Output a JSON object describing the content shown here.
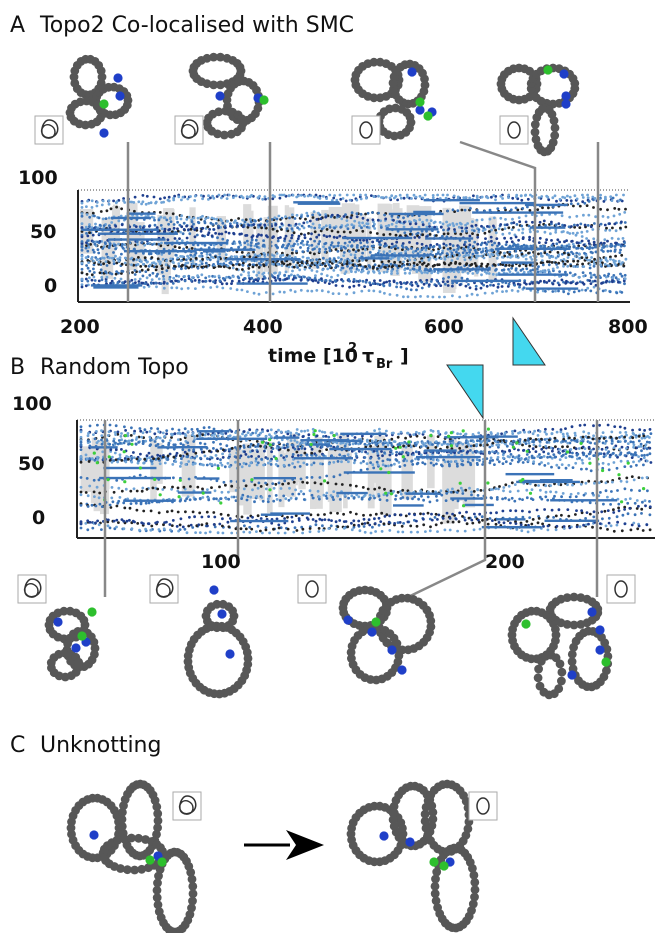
{
  "panels": {
    "A": {
      "letter": "A",
      "title": "Topo2 Co-localised with SMC"
    },
    "B": {
      "letter": "B",
      "title": "Random Topo"
    },
    "C": {
      "letter": "C",
      "title": "Unknotting"
    }
  },
  "axis_a": {
    "y_ticks": [
      "100",
      "50",
      "0"
    ],
    "x_ticks": [
      "200",
      "400",
      "600",
      "800"
    ],
    "x_label_main": "time [10",
    "x_label_sup": "2",
    "x_label_tau": "τ",
    "x_label_sub": "Br",
    "x_label_close": "]"
  },
  "axis_b": {
    "y_ticks": [
      "100",
      "50",
      "0"
    ],
    "x_ticks": [
      "100",
      "200"
    ]
  },
  "colors": {
    "bead_body": "#575757",
    "bead_topo": "#1f3fc8",
    "bead_smc": "#2dbf2d",
    "dots_dark": "#1f3f8f",
    "dots_mid": "#3b73b7",
    "dots_light": "#6fa3d6",
    "dots_black": "#222222",
    "dots_green": "#3ccf3c",
    "gray_band": "#dcdcdc",
    "marker_line": "#888888",
    "zoom_triangle": "#44d8ef"
  },
  "topology_icons": {
    "A": [
      "trefoil-icon",
      "trefoil-icon",
      "unknot-icon",
      "unknot-icon"
    ],
    "B": [
      "trefoil-icon",
      "trefoil-icon",
      "unknot-icon",
      "unknot-icon"
    ],
    "C": [
      "trefoil-icon",
      "unknot-icon"
    ]
  }
}
